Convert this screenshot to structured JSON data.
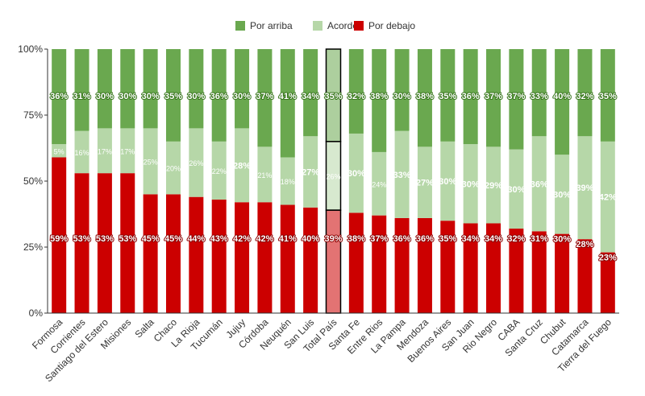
{
  "chart_data": {
    "type": "bar",
    "stacked": true,
    "percent": true,
    "categories": [
      "Formosa",
      "Corrientes",
      "Santiago del Estero",
      "Misiones",
      "Salta",
      "Chaco",
      "La Rioja",
      "Tucumán",
      "Jujuy",
      "Córdoba",
      "Neuquén",
      "San Luis",
      "Total País",
      "Santa Fe",
      "Entre Rios",
      "La Pampa",
      "Mendoza",
      "Buenos Aires",
      "San Juan",
      "Rio Negro",
      "CABA",
      "Santa Cruz",
      "Chubut",
      "Catamarca",
      "Tierra del Fuego"
    ],
    "highlight_category": "Total País",
    "series": [
      {
        "name": "Por debajo",
        "color": "#cc0000",
        "values": [
          59,
          53,
          53,
          53,
          45,
          45,
          44,
          43,
          42,
          42,
          41,
          40,
          39,
          38,
          37,
          36,
          36,
          35,
          34,
          34,
          32,
          31,
          30,
          28,
          23
        ],
        "labels": [
          "59%",
          "53%",
          "53%",
          "53%",
          "45%",
          "45%",
          "44%",
          "43%",
          "42%",
          "42%",
          "41%",
          "40%",
          "39%",
          "38%",
          "37%",
          "36%",
          "36%",
          "35%",
          "34%",
          "34%",
          "32%",
          "31%",
          "30%",
          "28%",
          "23%"
        ]
      },
      {
        "name": "Acorde",
        "color": "#b6d7a8",
        "values": [
          5,
          16,
          17,
          17,
          25,
          20,
          26,
          22,
          28,
          21,
          18,
          27,
          26,
          30,
          24,
          33,
          27,
          30,
          30,
          29,
          30,
          36,
          30,
          39,
          42
        ],
        "labels": [
          "5%",
          "16%",
          "17%",
          "17%",
          "25%",
          "20%",
          "26%",
          "22%",
          "28%",
          "21%",
          "18%",
          "27%",
          "26%",
          "30%",
          "24%",
          "33%",
          "27%",
          "30%",
          "30%",
          "29%",
          "30%",
          "36%",
          "30%",
          "39%",
          "42%"
        ]
      },
      {
        "name": "Por arriba",
        "color": "#6aa84f",
        "values": [
          36,
          31,
          30,
          30,
          30,
          35,
          30,
          36,
          30,
          37,
          41,
          34,
          35,
          32,
          38,
          30,
          38,
          35,
          36,
          37,
          37,
          33,
          40,
          32,
          35
        ],
        "labels": [
          "36%",
          "31%",
          "30%",
          "30%",
          "30%",
          "35%",
          "30%",
          "36%",
          "30%",
          "37%",
          "41%",
          "34%",
          "35%",
          "32%",
          "38%",
          "30%",
          "38%",
          "35%",
          "36%",
          "37%",
          "37%",
          "33%",
          "40%",
          "32%",
          "35%"
        ]
      }
    ],
    "ylim": [
      0,
      100
    ],
    "yticks": [
      "0%",
      "25%",
      "50%",
      "75%",
      "100%"
    ],
    "ytick_values": [
      0,
      25,
      50,
      75,
      100
    ],
    "legend_order": [
      "Por arriba",
      "Acorde",
      "Por debajo"
    ],
    "legend_position": "top-center",
    "grid": false
  }
}
